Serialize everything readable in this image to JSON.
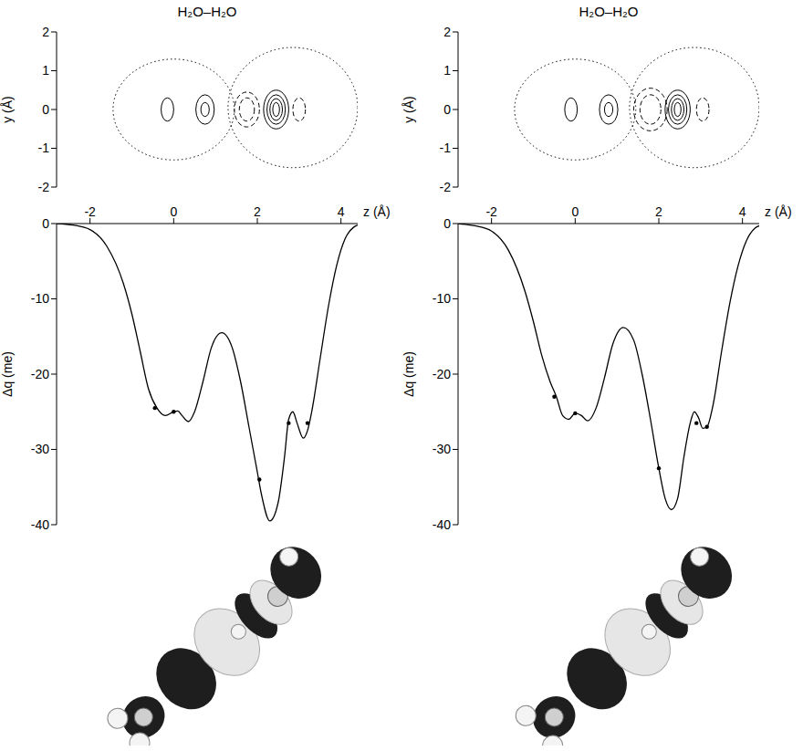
{
  "chart_data": [
    {
      "type": "contour",
      "title": "H₂O–H₂O",
      "ylabel": "y (Å)",
      "tick_labels": "y",
      "xlim": [
        -2.8,
        4.4
      ],
      "ylim": [
        -2,
        2
      ],
      "yticks": [
        2,
        1,
        0,
        -1,
        -2
      ],
      "contours": [
        {
          "x": 0,
          "y": 0,
          "rx": 1.45,
          "ry": 1.3,
          "line_style": "dotted"
        },
        {
          "x": 2.85,
          "y": 0.05,
          "rx": 1.55,
          "ry": 1.55,
          "line_style": "dotted"
        },
        {
          "x": 0.75,
          "y": 0,
          "rx": 0.22,
          "ry": 0.38,
          "line_style": "solid"
        },
        {
          "x": 0.75,
          "y": 0,
          "rx": 0.1,
          "ry": 0.18,
          "line_style": "solid"
        },
        {
          "x": -0.15,
          "y": 0,
          "rx": 0.15,
          "ry": 0.3,
          "line_style": "solid"
        },
        {
          "x": 1.75,
          "y": 0,
          "rx": 0.3,
          "ry": 0.45,
          "line_style": "dashed"
        },
        {
          "x": 1.75,
          "y": 0,
          "rx": 0.18,
          "ry": 0.3,
          "line_style": "dashed"
        },
        {
          "x": 2.45,
          "y": 0,
          "rx": 0.3,
          "ry": 0.5,
          "line_style": "solid"
        },
        {
          "x": 2.45,
          "y": 0,
          "rx": 0.22,
          "ry": 0.38,
          "line_style": "solid"
        },
        {
          "x": 2.45,
          "y": 0,
          "rx": 0.15,
          "ry": 0.28,
          "line_style": "solid"
        },
        {
          "x": 2.45,
          "y": 0,
          "rx": 0.08,
          "ry": 0.18,
          "line_style": "solid"
        },
        {
          "x": 3.0,
          "y": 0,
          "rx": 0.15,
          "ry": 0.3,
          "line_style": "dashed"
        }
      ]
    },
    {
      "type": "line",
      "xlabel": "z (Å)",
      "ylabel": "Δq (me)",
      "xlim": [
        -2.8,
        4.4
      ],
      "xticks": [
        -2,
        0,
        2,
        4
      ],
      "ylim": [
        -40,
        0
      ],
      "yticks": [
        0,
        -10,
        -20,
        -30,
        -40
      ],
      "series": [
        {
          "type": "line",
          "color": "#000000",
          "x": [
            -2.8,
            -2.4,
            -2.0,
            -1.6,
            -1.2,
            -1.0,
            -0.8,
            -0.6,
            -0.4,
            -0.2,
            0,
            0.1,
            0.2,
            0.35,
            0.5,
            0.7,
            0.9,
            1.15,
            1.4,
            1.6,
            1.8,
            2.0,
            2.1,
            2.3,
            2.5,
            2.65,
            2.75,
            2.85,
            2.95,
            3.1,
            3.2,
            3.3,
            3.5,
            3.7,
            3.9,
            4.1,
            4.3,
            4.4
          ],
          "values": [
            0,
            -0.2,
            -0.8,
            -3,
            -8,
            -12,
            -17,
            -22,
            -24.5,
            -25.5,
            -25,
            -24.9,
            -25.5,
            -26.3,
            -25,
            -21,
            -16.5,
            -14.5,
            -16.5,
            -21,
            -27,
            -33,
            -36,
            -39.5,
            -37,
            -31,
            -26,
            -25,
            -26.5,
            -28.5,
            -27.5,
            -25,
            -18,
            -11,
            -5.5,
            -2,
            -0.5,
            -0.2
          ]
        },
        {
          "type": "scatter",
          "marker": "circle",
          "color": "#000000",
          "x": [
            -0.45,
            0,
            2.05,
            2.75,
            3.2
          ],
          "values": [
            -24.5,
            -25,
            -34,
            -26.5,
            -26.5
          ]
        }
      ]
    },
    {
      "type": "contour",
      "title": "H₂O–H₂O",
      "ylabel": "y (Å)",
      "tick_labels": "y",
      "xlim": [
        -2.8,
        4.4
      ],
      "ylim": [
        -2,
        2
      ],
      "yticks": [
        2,
        1,
        0,
        -1,
        -2
      ],
      "contours": [
        {
          "x": 0,
          "y": 0,
          "rx": 1.45,
          "ry": 1.3,
          "line_style": "dotted"
        },
        {
          "x": 2.85,
          "y": 0.05,
          "rx": 1.55,
          "ry": 1.55,
          "line_style": "dotted"
        },
        {
          "x": 0.8,
          "y": 0,
          "rx": 0.22,
          "ry": 0.38,
          "line_style": "solid"
        },
        {
          "x": 0.8,
          "y": 0,
          "rx": 0.1,
          "ry": 0.18,
          "line_style": "solid"
        },
        {
          "x": -0.1,
          "y": 0,
          "rx": 0.15,
          "ry": 0.3,
          "line_style": "solid"
        },
        {
          "x": 1.8,
          "y": 0,
          "rx": 0.4,
          "ry": 0.55,
          "line_style": "dashed"
        },
        {
          "x": 1.8,
          "y": 0,
          "rx": 0.25,
          "ry": 0.38,
          "line_style": "dashed"
        },
        {
          "x": 2.45,
          "y": 0,
          "rx": 0.3,
          "ry": 0.5,
          "line_style": "solid"
        },
        {
          "x": 2.45,
          "y": 0,
          "rx": 0.22,
          "ry": 0.38,
          "line_style": "solid"
        },
        {
          "x": 2.45,
          "y": 0,
          "rx": 0.15,
          "ry": 0.28,
          "line_style": "solid"
        },
        {
          "x": 2.45,
          "y": 0,
          "rx": 0.08,
          "ry": 0.18,
          "line_style": "solid"
        },
        {
          "x": 3.05,
          "y": 0,
          "rx": 0.15,
          "ry": 0.3,
          "line_style": "dashed"
        }
      ]
    },
    {
      "type": "line",
      "xlabel": "z (Å)",
      "ylabel": "Δq (me)",
      "xlim": [
        -2.8,
        4.4
      ],
      "xticks": [
        -2,
        0,
        2,
        4
      ],
      "ylim": [
        -40,
        0
      ],
      "yticks": [
        0,
        -10,
        -20,
        -30,
        -40
      ],
      "series": [
        {
          "type": "line",
          "color": "#000000",
          "x": [
            -2.8,
            -2.4,
            -2.0,
            -1.6,
            -1.2,
            -1.0,
            -0.8,
            -0.6,
            -0.45,
            -0.3,
            -0.15,
            0,
            0.15,
            0.3,
            0.5,
            0.7,
            0.9,
            1.15,
            1.4,
            1.6,
            1.8,
            2.0,
            2.15,
            2.3,
            2.45,
            2.6,
            2.75,
            2.85,
            2.95,
            3.05,
            3.15,
            3.3,
            3.5,
            3.7,
            3.9,
            4.1,
            4.3,
            4.4
          ],
          "values": [
            0,
            -0.3,
            -1,
            -3.5,
            -9,
            -13,
            -17.5,
            -21,
            -23,
            -25.5,
            -26,
            -25.2,
            -25.5,
            -26.2,
            -24.5,
            -20.5,
            -16,
            -13.8,
            -15.5,
            -20,
            -26,
            -32.5,
            -36.5,
            -38,
            -36.5,
            -31,
            -26.5,
            -25,
            -25.8,
            -27.2,
            -27,
            -24,
            -17,
            -10.5,
            -5.5,
            -2.2,
            -0.6,
            -0.3
          ]
        },
        {
          "type": "scatter",
          "marker": "circle",
          "color": "#000000",
          "x": [
            -0.5,
            0,
            2.0,
            2.9,
            3.15
          ],
          "values": [
            -23,
            -25.2,
            -32.5,
            -26.5,
            -27
          ]
        }
      ]
    }
  ]
}
